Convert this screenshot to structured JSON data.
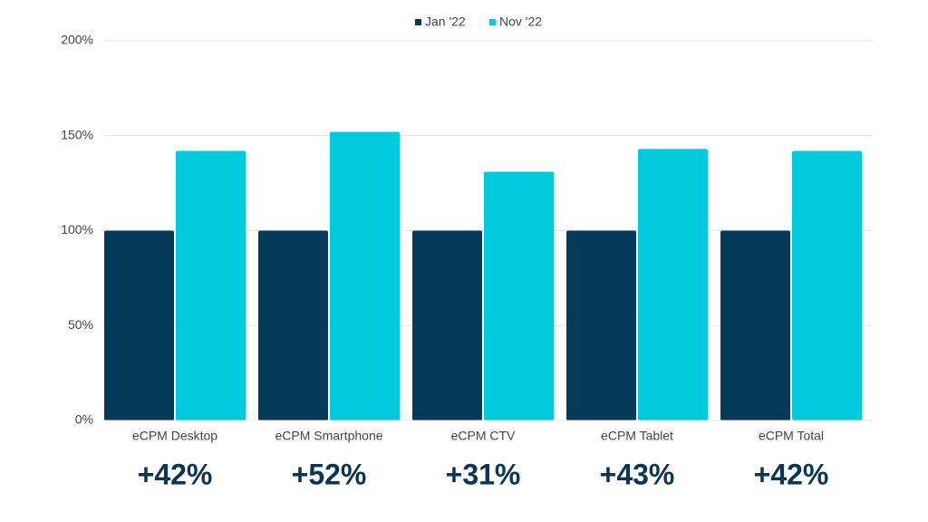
{
  "chart_data": {
    "type": "bar",
    "categories": [
      "eCPM Desktop",
      "eCPM Smartphone",
      "eCPM CTV",
      "eCPM Tablet",
      "eCPM Total"
    ],
    "series": [
      {
        "name": "Jan '22",
        "color": "#063a5b",
        "values": [
          100,
          100,
          100,
          100,
          100
        ]
      },
      {
        "name": "Nov '22",
        "color": "#00cadc",
        "values": [
          142,
          152,
          131,
          143,
          142
        ]
      }
    ],
    "ylim": [
      0,
      200
    ],
    "yticks": [
      {
        "value": 0,
        "label": "0%"
      },
      {
        "value": 50,
        "label": "50%"
      },
      {
        "value": 100,
        "label": "100%"
      },
      {
        "value": 150,
        "label": "150%"
      },
      {
        "value": 200,
        "label": "200%"
      }
    ],
    "grid": true,
    "legend": "top",
    "annotations": [
      "+42%",
      "+52%",
      "+31%",
      "+43%",
      "+42%"
    ]
  }
}
